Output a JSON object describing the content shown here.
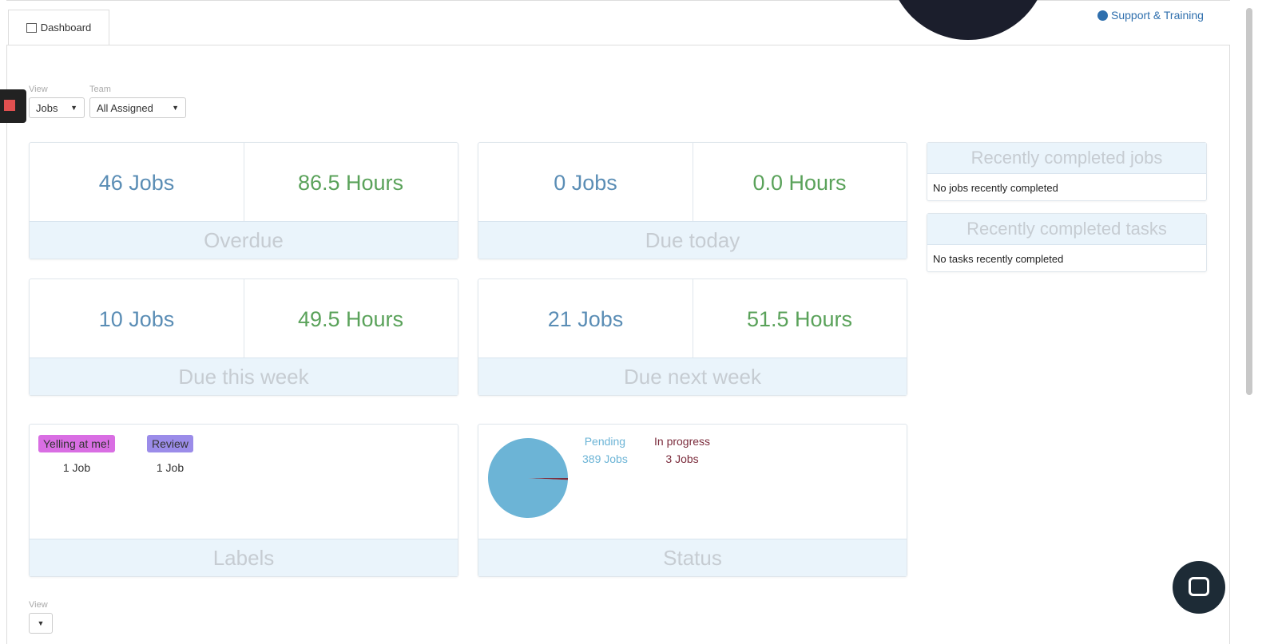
{
  "tabs": [
    "Dashboard"
  ],
  "support_link": "Support & Training",
  "filters": [
    {
      "label": "View",
      "value": "Jobs"
    },
    {
      "label": "Team",
      "value": "All Assigned"
    }
  ],
  "summary_cards": [
    {
      "jobs": "46 Jobs",
      "hours": "86.5 Hours",
      "title": "Overdue"
    },
    {
      "jobs": "0 Jobs",
      "hours": "0.0 Hours",
      "title": "Due today"
    },
    {
      "jobs": "10 Jobs",
      "hours": "49.5 Hours",
      "title": "Due this week"
    },
    {
      "jobs": "21 Jobs",
      "hours": "51.5 Hours",
      "title": "Due next week"
    }
  ],
  "labels_card": {
    "title": "Labels",
    "items": [
      {
        "name": "Yelling at me!",
        "count": "1 Job",
        "color": "#d96ee3"
      },
      {
        "name": "Review",
        "count": "1 Job",
        "color": "#9b8ce9"
      }
    ]
  },
  "status_card": {
    "title": "Status",
    "items": [
      {
        "name": "Pending",
        "value": 389,
        "label": "389 Jobs",
        "color": "#6cb4d6"
      },
      {
        "name": "In progress",
        "value": 3,
        "label": "3 Jobs",
        "color": "#7b2c3c"
      }
    ]
  },
  "recent": [
    {
      "title": "Recently completed jobs",
      "message": "No jobs recently completed"
    },
    {
      "title": "Recently completed tasks",
      "message": "No tasks recently completed"
    }
  ],
  "bottom_filter": {
    "label": "View"
  }
}
